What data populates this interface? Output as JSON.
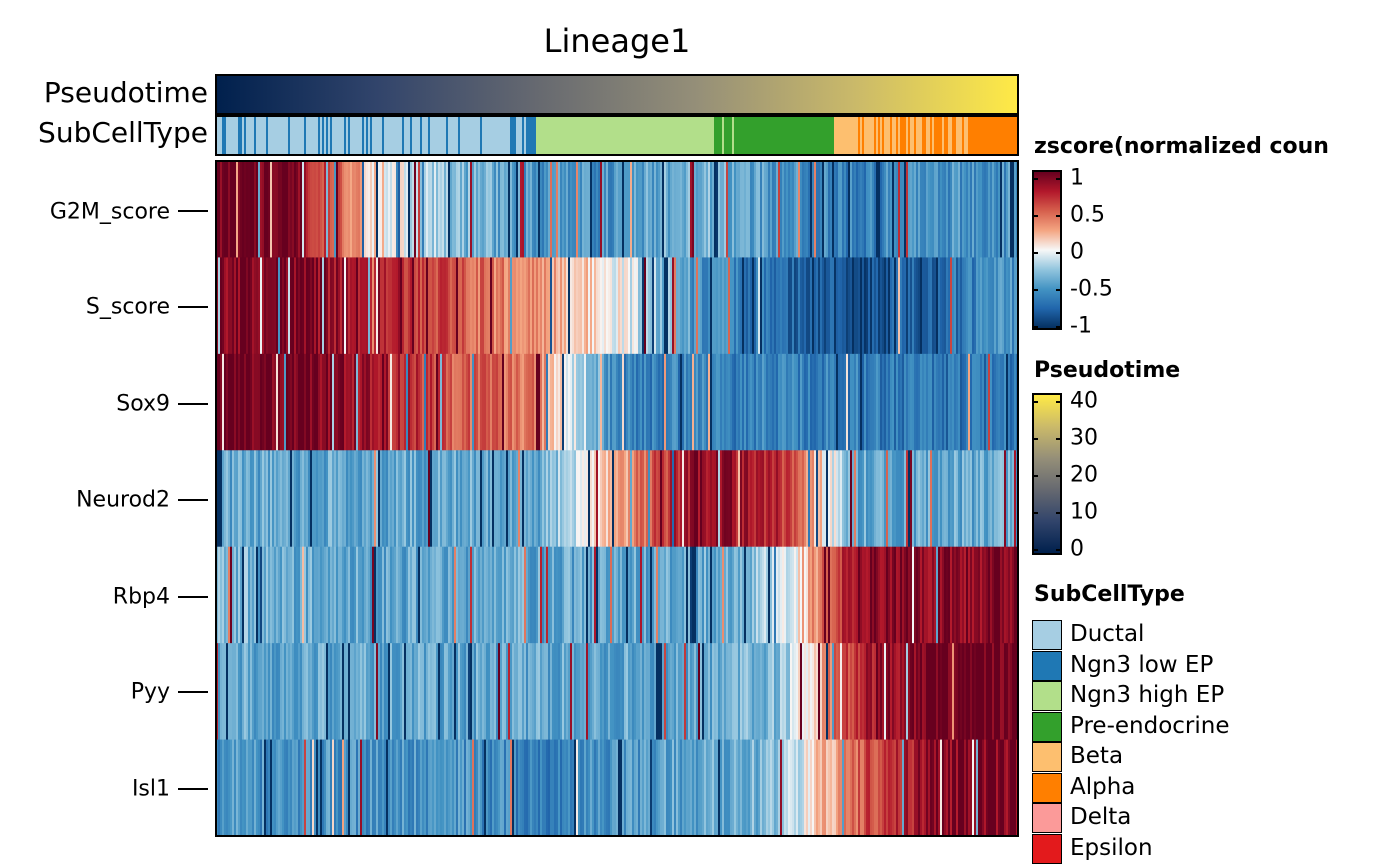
{
  "chart_data": {
    "type": "heatmap",
    "title": "Lineage1",
    "annotations": [
      {
        "name": "Pseudotime",
        "type": "continuous",
        "range": [
          0,
          42
        ]
      },
      {
        "name": "SubCellType",
        "type": "categorical",
        "segments": [
          {
            "category": "Ductal",
            "from": 0.0,
            "to": 0.4
          },
          {
            "category": "Ngn3 low EP",
            "from": 0.37,
            "to": 0.4
          },
          {
            "category": "Ngn3 high EP",
            "from": 0.4,
            "to": 0.62
          },
          {
            "category": "Pre-endocrine",
            "from": 0.62,
            "to": 0.77
          },
          {
            "category": "Beta",
            "from": 0.77,
            "to": 0.94
          },
          {
            "category": "Alpha",
            "from": 0.8,
            "to": 1.0
          }
        ]
      }
    ],
    "rows": [
      "G2M_score",
      "S_score",
      "Sox9",
      "Neurod2",
      "Rbp4",
      "Pyy",
      "Isl1"
    ],
    "row_profiles": [
      {
        "row": "G2M_score",
        "pseudotime_fraction": [
          0.0,
          0.1,
          0.2,
          0.3,
          0.4,
          0.5,
          0.6,
          0.7,
          0.8,
          0.9,
          1.0
        ],
        "zscore": [
          1.0,
          0.9,
          0.1,
          -0.3,
          -0.5,
          -0.5,
          -0.3,
          -0.5,
          -0.6,
          -0.5,
          -0.5
        ]
      },
      {
        "row": "S_score",
        "pseudotime_fraction": [
          0.0,
          0.1,
          0.2,
          0.3,
          0.4,
          0.5,
          0.6,
          0.7,
          0.8,
          0.9,
          1.0
        ],
        "zscore": [
          0.9,
          0.9,
          0.8,
          0.5,
          0.3,
          0.0,
          -0.5,
          -0.7,
          -0.9,
          -0.7,
          -0.5
        ]
      },
      {
        "row": "Sox9",
        "pseudotime_fraction": [
          0.0,
          0.1,
          0.2,
          0.3,
          0.4,
          0.5,
          0.6,
          0.7,
          0.8,
          0.9,
          1.0
        ],
        "zscore": [
          1.0,
          1.0,
          0.8,
          0.5,
          0.4,
          -0.6,
          -0.6,
          -0.6,
          -0.6,
          -0.7,
          -0.6
        ]
      },
      {
        "row": "Neurod2",
        "pseudotime_fraction": [
          0.0,
          0.1,
          0.2,
          0.3,
          0.4,
          0.5,
          0.6,
          0.7,
          0.8,
          0.9,
          1.0
        ],
        "zscore": [
          -0.4,
          -0.4,
          -0.4,
          -0.4,
          -0.4,
          0.2,
          0.9,
          0.7,
          -0.4,
          -0.4,
          -0.4
        ]
      },
      {
        "row": "Rbp4",
        "pseudotime_fraction": [
          0.0,
          0.1,
          0.2,
          0.3,
          0.4,
          0.5,
          0.6,
          0.7,
          0.8,
          0.9,
          1.0
        ],
        "zscore": [
          -0.3,
          -0.4,
          -0.4,
          -0.4,
          -0.4,
          -0.4,
          -0.4,
          -0.2,
          0.9,
          0.9,
          0.9
        ]
      },
      {
        "row": "Pyy",
        "pseudotime_fraction": [
          0.0,
          0.1,
          0.2,
          0.3,
          0.4,
          0.5,
          0.6,
          0.7,
          0.8,
          0.9,
          1.0
        ],
        "zscore": [
          -0.4,
          -0.4,
          -0.4,
          -0.4,
          -0.4,
          -0.4,
          -0.4,
          -0.3,
          0.7,
          1.0,
          1.0
        ]
      },
      {
        "row": "Isl1",
        "pseudotime_fraction": [
          0.0,
          0.1,
          0.2,
          0.3,
          0.4,
          0.5,
          0.6,
          0.7,
          0.8,
          0.9,
          1.0
        ],
        "zscore": [
          -0.5,
          -0.5,
          -0.5,
          -0.5,
          -0.6,
          -0.5,
          -0.4,
          -0.3,
          0.5,
          0.9,
          0.9
        ]
      }
    ],
    "legends": {
      "zscore": {
        "title": "zscore(normalized coun",
        "ticks": [
          "1",
          "0.5",
          "0",
          "-0.5",
          "-1"
        ],
        "range": [
          -1,
          1
        ],
        "colors": [
          "#053061",
          "#2166ac",
          "#4393c3",
          "#92c5de",
          "#f7f7f7",
          "#f4a582",
          "#d6604d",
          "#b2182b",
          "#67001f"
        ]
      },
      "pseudotime": {
        "title": "Pseudotime",
        "ticks": [
          "40",
          "30",
          "20",
          "10",
          "0"
        ],
        "range": [
          0,
          42
        ],
        "colors": [
          "#00204d",
          "#31446b",
          "#666970",
          "#958f78",
          "#cbba69",
          "#ffea46"
        ]
      },
      "subcelltype": {
        "title": "SubCellType",
        "items": [
          {
            "label": "Ductal",
            "color": "#a6cee3"
          },
          {
            "label": "Ngn3 low EP",
            "color": "#1f78b4"
          },
          {
            "label": "Ngn3 high EP",
            "color": "#b2df8a"
          },
          {
            "label": "Pre-endocrine",
            "color": "#33a02c"
          },
          {
            "label": "Beta",
            "color": "#fdbf6f"
          },
          {
            "label": "Alpha",
            "color": "#ff7f00"
          },
          {
            "label": "Delta",
            "color": "#fb9a99"
          },
          {
            "label": "Epsilon",
            "color": "#e31a1c"
          }
        ]
      }
    }
  }
}
